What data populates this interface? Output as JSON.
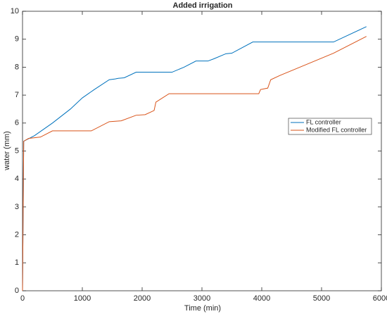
{
  "chart_data": {
    "type": "line",
    "title": "Added irrigation",
    "x_label": "Time (min)",
    "y_label": "water (mm)",
    "xlim": [
      0,
      6000
    ],
    "xticks": [
      0,
      1000,
      2000,
      3000,
      4000,
      5000,
      6000
    ],
    "ylim": [
      0,
      10
    ],
    "yticks": [
      0,
      1,
      2,
      3,
      4,
      5,
      6,
      7,
      8,
      9,
      10
    ],
    "grid": false,
    "legend": "east",
    "series": [
      {
        "name": "FL controller",
        "color": "#0072BD",
        "x": [
          0,
          20,
          200,
          500,
          800,
          1000,
          1200,
          1450,
          1550,
          1600,
          1700,
          1900,
          2500,
          2700,
          2900,
          3100,
          3200,
          3400,
          3500,
          3850,
          5200,
          5750
        ],
        "values": [
          0,
          5.35,
          5.55,
          6.0,
          6.5,
          6.9,
          7.2,
          7.55,
          7.58,
          7.6,
          7.62,
          7.82,
          7.82,
          8.0,
          8.22,
          8.22,
          8.3,
          8.48,
          8.5,
          8.9,
          8.9,
          9.45
        ]
      },
      {
        "name": "Modified FL controller",
        "color": "#D95319",
        "x": [
          0,
          20,
          100,
          300,
          500,
          1150,
          1450,
          1650,
          1900,
          2050,
          2150,
          2200,
          2230,
          2450,
          3950,
          3980,
          4100,
          4150,
          4300,
          5200,
          5750
        ],
        "values": [
          0,
          5.35,
          5.45,
          5.5,
          5.72,
          5.72,
          6.05,
          6.08,
          6.28,
          6.3,
          6.4,
          6.45,
          6.75,
          7.05,
          7.05,
          7.2,
          7.25,
          7.55,
          7.7,
          8.5,
          9.1
        ]
      }
    ]
  }
}
